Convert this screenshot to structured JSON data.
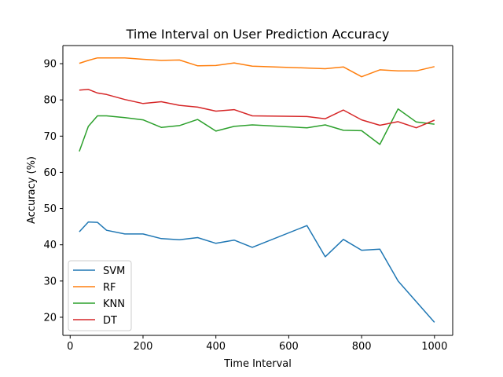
{
  "chart_data": {
    "type": "line",
    "title": "Time Interval on User Prediction Accuracy",
    "xlabel": "Time Interval",
    "ylabel": "Accuracy (%)",
    "xlim": [
      -20,
      1050
    ],
    "ylim": [
      15,
      95
    ],
    "xticks": [
      0,
      200,
      400,
      600,
      800,
      1000
    ],
    "yticks": [
      20,
      30,
      40,
      50,
      60,
      70,
      80,
      90
    ],
    "grid": false,
    "legend_position": "lower-left",
    "x": [
      25,
      50,
      75,
      100,
      150,
      200,
      250,
      300,
      350,
      400,
      450,
      500,
      550,
      600,
      650,
      700,
      750,
      800,
      850,
      900,
      950,
      1000
    ],
    "series": [
      {
        "name": "SVM",
        "color": "#1f77b4",
        "values": [
          43.6,
          46.3,
          46.2,
          44.0,
          43.0,
          43.0,
          41.7,
          41.4,
          42.0,
          40.4,
          41.3,
          39.3,
          null,
          null,
          45.3,
          36.7,
          41.5,
          38.5,
          38.8,
          30.0,
          null,
          18.6
        ]
      },
      {
        "name": "RF",
        "color": "#ff7f0e",
        "values": [
          90.1,
          90.9,
          91.6,
          91.6,
          91.6,
          91.2,
          90.9,
          91.0,
          89.4,
          89.5,
          90.2,
          89.3,
          null,
          null,
          88.8,
          88.6,
          89.1,
          86.4,
          88.3,
          88.0,
          88.0,
          89.2
        ]
      },
      {
        "name": "KNN",
        "color": "#2ca02c",
        "values": [
          65.8,
          72.7,
          75.6,
          75.6,
          75.1,
          74.5,
          72.4,
          72.9,
          74.6,
          71.4,
          72.7,
          73.1,
          null,
          null,
          72.3,
          73.1,
          71.6,
          71.5,
          67.7,
          77.5,
          73.9,
          73.3
        ]
      },
      {
        "name": "DT",
        "color": "#d62728",
        "values": [
          82.7,
          82.9,
          81.9,
          81.5,
          80.1,
          79.0,
          79.5,
          78.5,
          78.0,
          76.9,
          77.3,
          75.6,
          null,
          null,
          75.4,
          74.8,
          77.2,
          74.5,
          73.0,
          74.0,
          72.3,
          74.4
        ]
      }
    ]
  }
}
